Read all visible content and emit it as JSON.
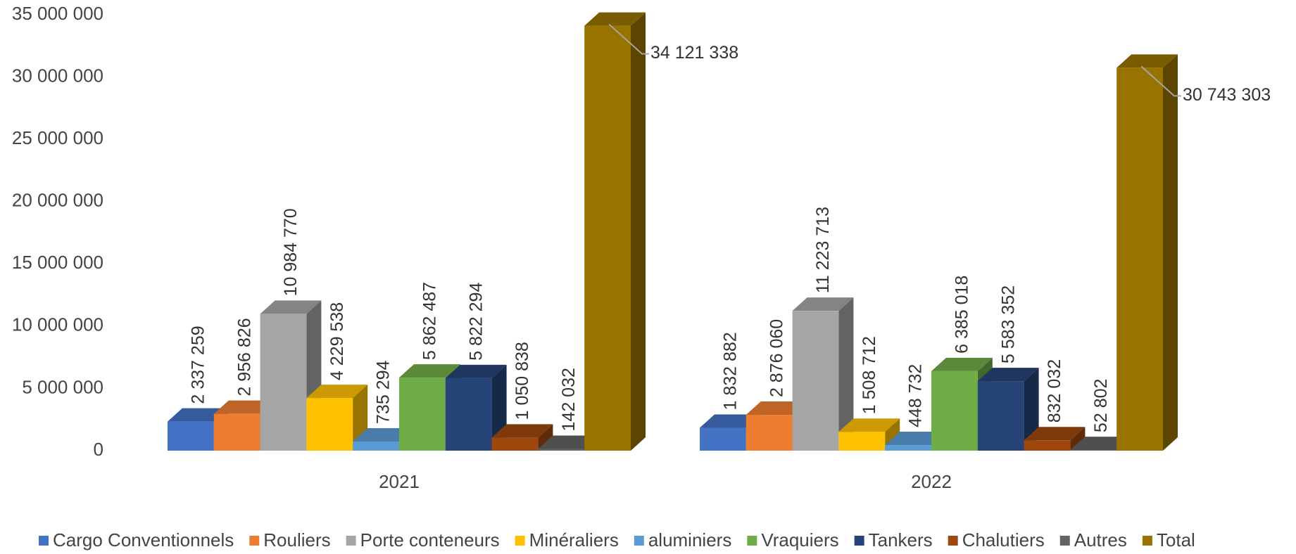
{
  "chart_data": {
    "type": "bar3d",
    "categories": [
      "2021",
      "2022"
    ],
    "ylim": [
      0,
      35000000
    ],
    "yticks": [
      0,
      {
        "value": 5000000,
        "label": "5 000 000"
      },
      {
        "value": 10000000,
        "label": "10 000 000"
      },
      {
        "value": 15000000,
        "label": "15 000 000"
      },
      {
        "value": 20000000,
        "label": "20 000 000"
      },
      {
        "value": 25000000,
        "label": "25 000 000"
      },
      {
        "value": 30000000,
        "label": "30 000 000"
      },
      {
        "value": 35000000,
        "label": "35 000 000"
      }
    ],
    "legend": "bottom",
    "series": [
      {
        "name": "Cargo Conventionnels",
        "color": "#4472c4",
        "values": [
          2337259,
          1832882
        ],
        "value_labels": [
          "2 337 259",
          "1 832 882"
        ]
      },
      {
        "name": "Rouliers",
        "color": "#ed7d31",
        "values": [
          2956826,
          2876060
        ],
        "value_labels": [
          "2 956 826",
          "2 876 060"
        ]
      },
      {
        "name": "Porte conteneurs",
        "color": "#a5a5a5",
        "values": [
          10984770,
          11223713
        ],
        "value_labels": [
          "10 984 770",
          "11 223 713"
        ]
      },
      {
        "name": "Minéraliers",
        "color": "#ffc000",
        "values": [
          4229538,
          1508712
        ],
        "value_labels": [
          "4 229 538",
          "1 508 712"
        ]
      },
      {
        "name": "aluminiers",
        "color": "#5b9bd5",
        "values": [
          735294,
          448732
        ],
        "value_labels": [
          "735 294",
          "448 732"
        ]
      },
      {
        "name": "Vraquiers",
        "color": "#70ad47",
        "values": [
          5862487,
          6385018
        ],
        "value_labels": [
          "5 862 487",
          "6 385 018"
        ]
      },
      {
        "name": "Tankers",
        "color": "#264478",
        "values": [
          5822294,
          5583352
        ],
        "value_labels": [
          "5 822 294",
          "5 583 352"
        ]
      },
      {
        "name": "Chalutiers",
        "color": "#9e480e",
        "values": [
          1050838,
          832032
        ],
        "value_labels": [
          "1 050 838",
          "832 032"
        ]
      },
      {
        "name": "Autres",
        "color": "#636363",
        "values": [
          142032,
          52802
        ],
        "value_labels": [
          "142 032",
          "52 802"
        ]
      },
      {
        "name": "Total",
        "color": "#997300",
        "values": [
          34121338,
          30743303
        ],
        "value_labels": [
          "34 121 338",
          "30 743 303"
        ]
      }
    ]
  }
}
